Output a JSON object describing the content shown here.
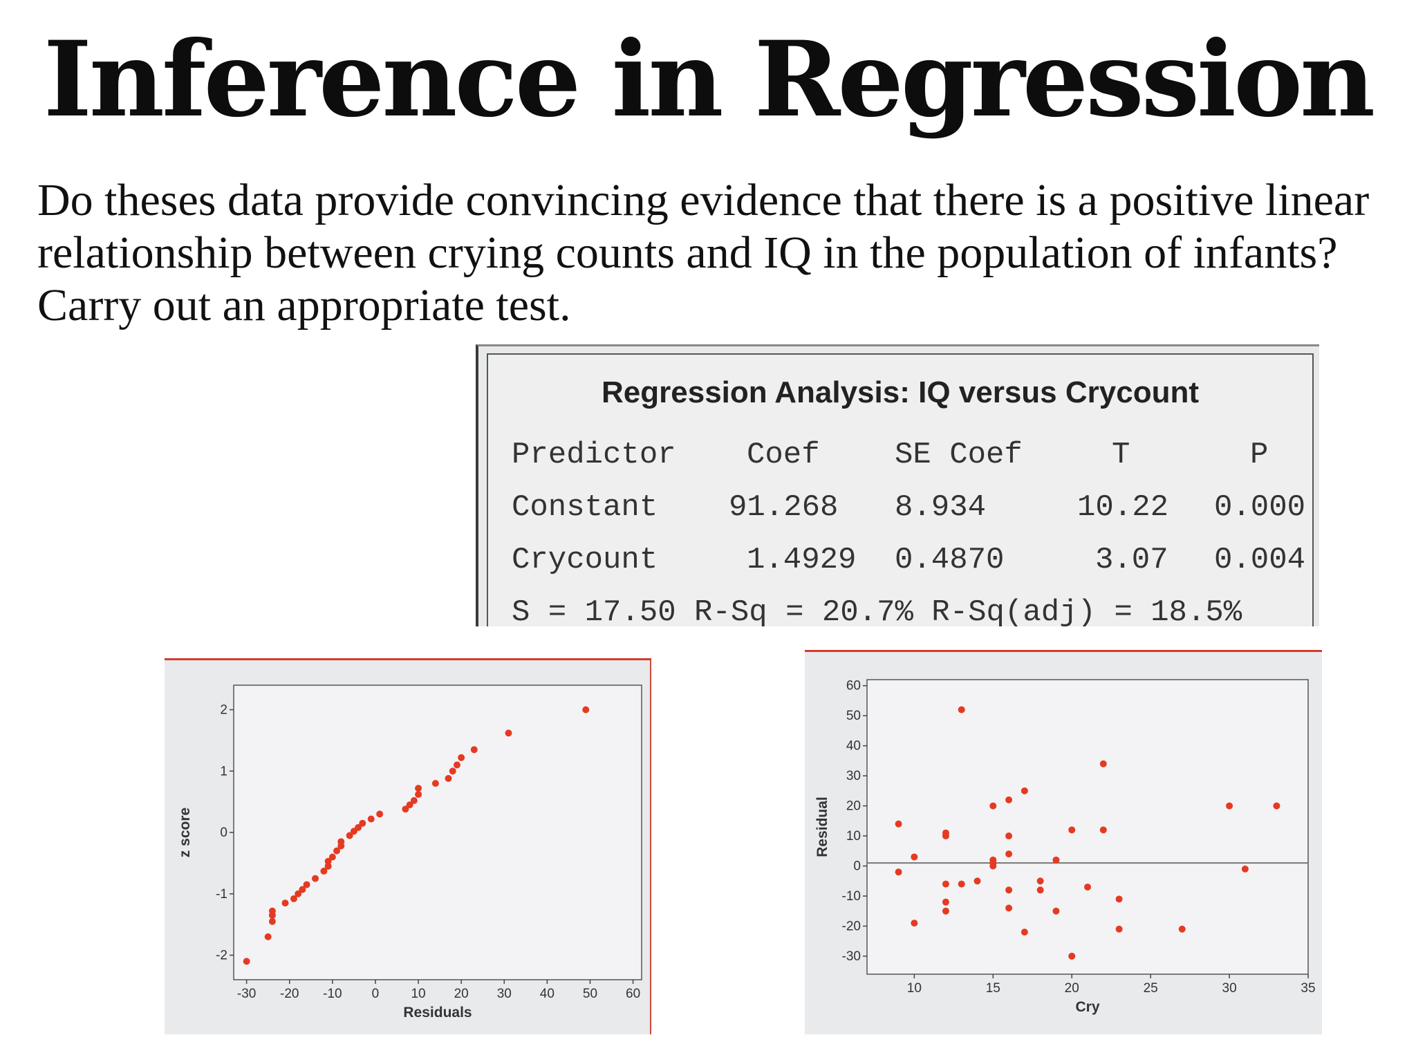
{
  "slide": {
    "title": "Inference in Regression",
    "question": "Do theses data provide convincing evidence that there is a positive linear relationship between crying counts and IQ in the population of infants? Carry out an appropriate test."
  },
  "regression": {
    "title": "Regression Analysis: IQ versus Crycount",
    "headers": [
      "Predictor",
      "Coef",
      "SE Coef",
      "T",
      "P"
    ],
    "rows": [
      [
        "Constant",
        "91.268",
        "8.934",
        "10.22",
        "0.000"
      ],
      [
        "Crycount",
        "1.4929",
        "0.4870",
        "3.07",
        "0.004"
      ]
    ],
    "summary": "S = 17.50 R-Sq = 20.7% R-Sq(adj) = 18.5%"
  },
  "chart_data": [
    {
      "type": "scatter",
      "xlabel": "Residuals",
      "ylabel": "z score",
      "xlim": [
        -33,
        62
      ],
      "ylim": [
        -2.4,
        2.4
      ],
      "xticks": [
        "-30",
        "-20",
        "-10",
        "0",
        "10",
        "20",
        "30",
        "40",
        "50",
        "60"
      ],
      "yticks": [
        "-2",
        "-1",
        "0",
        "1",
        "2"
      ],
      "point_color": "#e53a22",
      "points": [
        [
          -30,
          -2.1
        ],
        [
          -25,
          -1.7
        ],
        [
          -24,
          -1.45
        ],
        [
          -24,
          -1.35
        ],
        [
          -24,
          -1.28
        ],
        [
          -21,
          -1.15
        ],
        [
          -19,
          -1.08
        ],
        [
          -18,
          -1.0
        ],
        [
          -17,
          -0.93
        ],
        [
          -16,
          -0.85
        ],
        [
          -14,
          -0.75
        ],
        [
          -12,
          -0.63
        ],
        [
          -11,
          -0.55
        ],
        [
          -11,
          -0.47
        ],
        [
          -10,
          -0.4
        ],
        [
          -9,
          -0.3
        ],
        [
          -8,
          -0.22
        ],
        [
          -8,
          -0.15
        ],
        [
          -6,
          -0.05
        ],
        [
          -5,
          0.02
        ],
        [
          -4,
          0.08
        ],
        [
          -3,
          0.15
        ],
        [
          -1,
          0.22
        ],
        [
          1,
          0.3
        ],
        [
          7,
          0.38
        ],
        [
          8,
          0.45
        ],
        [
          9,
          0.52
        ],
        [
          10,
          0.62
        ],
        [
          10,
          0.72
        ],
        [
          14,
          0.8
        ],
        [
          17,
          0.88
        ],
        [
          18,
          1.0
        ],
        [
          19,
          1.1
        ],
        [
          20,
          1.22
        ],
        [
          23,
          1.35
        ],
        [
          31,
          1.62
        ],
        [
          49,
          2.0
        ]
      ]
    },
    {
      "type": "scatter",
      "xlabel": "Cry",
      "ylabel": "Residual",
      "xlim": [
        7,
        35
      ],
      "ylim": [
        -36,
        62
      ],
      "xticks": [
        "10",
        "15",
        "20",
        "25",
        "30",
        "35"
      ],
      "yticks": [
        "60",
        "50",
        "40",
        "30",
        "20",
        "10",
        "0",
        "-10",
        "-20",
        "-30"
      ],
      "reference_line_y": 1,
      "point_color": "#e53a22",
      "points": [
        [
          9,
          14
        ],
        [
          9,
          -2
        ],
        [
          10,
          3
        ],
        [
          10,
          -19
        ],
        [
          12,
          11
        ],
        [
          12,
          10
        ],
        [
          12,
          -6
        ],
        [
          12,
          -12
        ],
        [
          12,
          -15
        ],
        [
          13,
          52
        ],
        [
          13,
          -6
        ],
        [
          14,
          -5
        ],
        [
          15,
          20
        ],
        [
          15,
          2
        ],
        [
          15,
          0
        ],
        [
          15,
          1
        ],
        [
          16,
          22
        ],
        [
          16,
          10
        ],
        [
          16,
          4
        ],
        [
          16,
          -8
        ],
        [
          16,
          -14
        ],
        [
          17,
          25
        ],
        [
          17,
          -22
        ],
        [
          18,
          -5
        ],
        [
          18,
          -8
        ],
        [
          19,
          2
        ],
        [
          19,
          -15
        ],
        [
          20,
          12
        ],
        [
          20,
          -30
        ],
        [
          21,
          -7
        ],
        [
          22,
          34
        ],
        [
          22,
          12
        ],
        [
          23,
          -11
        ],
        [
          23,
          -21
        ],
        [
          27,
          -21
        ],
        [
          30,
          20
        ],
        [
          31,
          -1
        ],
        [
          33,
          20
        ]
      ]
    }
  ]
}
